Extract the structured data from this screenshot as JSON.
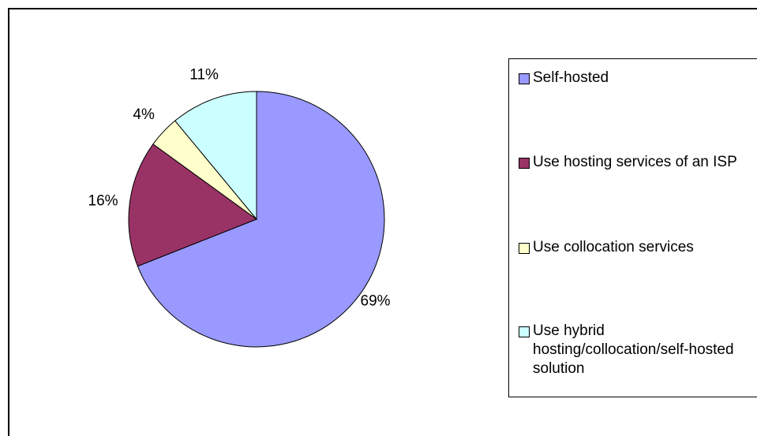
{
  "chart_data": {
    "type": "pie",
    "slices": [
      {
        "label": "Self-hosted",
        "value": 69,
        "display": "69%",
        "color": "#9999ff"
      },
      {
        "label": "Use hosting services of an ISP",
        "value": 16,
        "display": "16%",
        "color": "#993366"
      },
      {
        "label": "Use collocation services",
        "value": 4,
        "display": "4%",
        "color": "#ffffcc"
      },
      {
        "label": "Use hybrid hosting/collocation/self-hosted solution",
        "value": 11,
        "display": "11%",
        "color": "#ccffff"
      }
    ],
    "legend": {
      "position": "right"
    },
    "start": "top",
    "direction": "clockwise"
  }
}
